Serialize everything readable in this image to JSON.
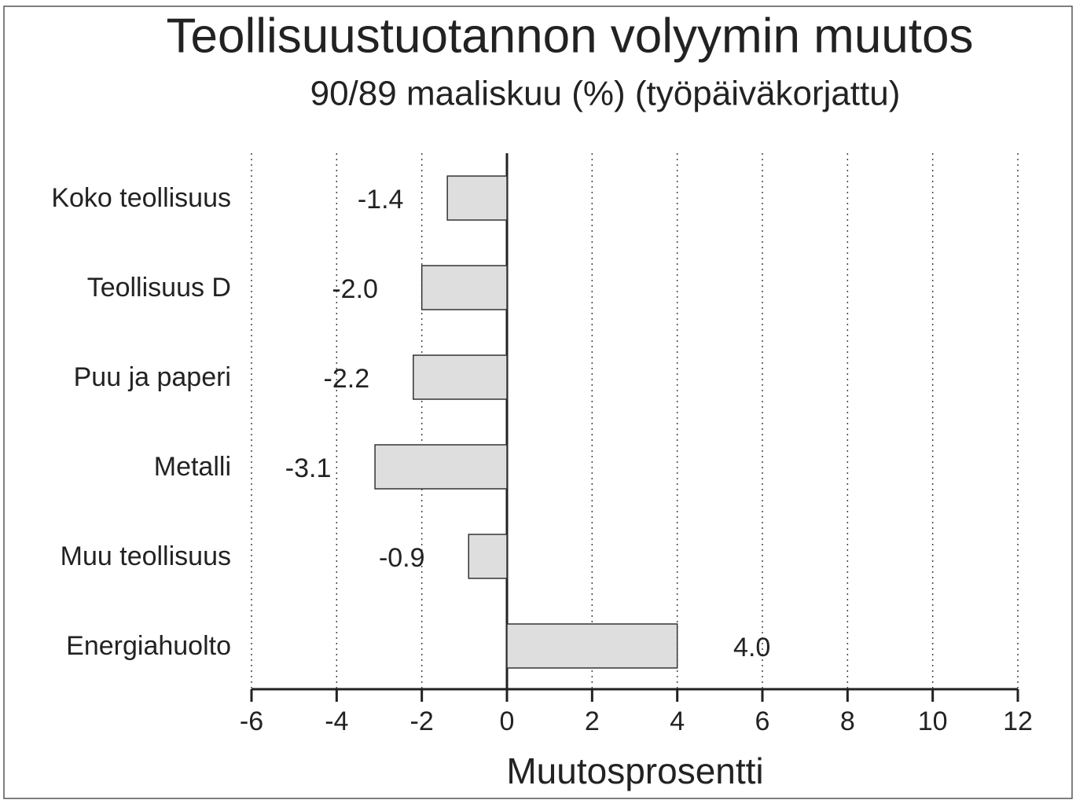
{
  "chart_data": {
    "type": "hbar",
    "title": "Teollisuustuotannon volyymin muutos",
    "subtitle": "90/89 maaliskuu (%) (työpäiväkorjattu)",
    "xlabel": "Muutosprosentti",
    "categories": [
      "Koko teollisuus",
      "Teollisuus D",
      "Puu ja paperi",
      "Metalli",
      "Muu teollisuus",
      "Energiahuolto"
    ],
    "values": [
      -1.4,
      -2.0,
      -2.2,
      -3.1,
      -0.9,
      4.0
    ],
    "value_labels": [
      "-1.4",
      "-2.0",
      "-2.2",
      "-3.1",
      "-0.9",
      "4.0"
    ],
    "color": "#dedede",
    "xlim": [
      -6,
      12
    ],
    "xticks": [
      -6,
      -4,
      -2,
      0,
      2,
      4,
      6,
      8,
      10,
      12
    ],
    "grid": true
  }
}
